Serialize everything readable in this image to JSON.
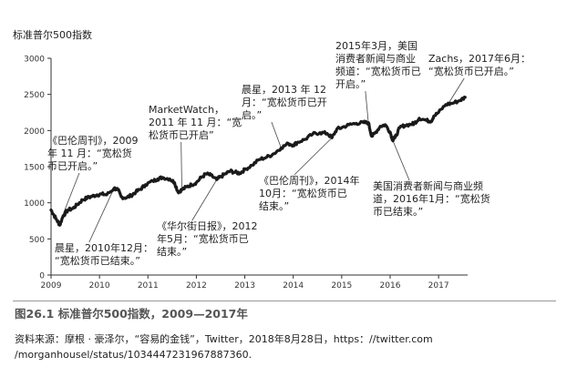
{
  "chart_data": {
    "type": "line",
    "title": "标准普尔500指数",
    "xlabel": "",
    "ylabel": "",
    "ylim": [
      0,
      3000
    ],
    "xlim": [
      2009,
      2017.6
    ],
    "yticks": [
      "0",
      "500",
      "1000",
      "1500",
      "2000",
      "2500",
      "3000"
    ],
    "xticks": [
      "2009",
      "2010",
      "2011",
      "2012",
      "2013",
      "2014",
      "2015",
      "2016",
      "2017"
    ],
    "series": [
      {
        "x": [
          2009.0,
          2009.05,
          2009.12,
          2009.18,
          2009.25,
          2009.35,
          2009.45,
          2009.55,
          2009.65,
          2009.75,
          2009.85,
          2009.95,
          2010.05,
          2010.15,
          2010.3,
          2010.38,
          2010.45,
          2010.55,
          2010.65,
          2010.75,
          2010.85,
          2010.95,
          2011.1,
          2011.2,
          2011.3,
          2011.45,
          2011.55,
          2011.62,
          2011.7,
          2011.8,
          2011.9,
          2012.0,
          2012.1,
          2012.2,
          2012.3,
          2012.42,
          2012.5,
          2012.6,
          2012.7,
          2012.8,
          2012.9,
          2013.0,
          2013.15,
          2013.3,
          2013.45,
          2013.6,
          2013.75,
          2013.9,
          2014.0,
          2014.1,
          2014.25,
          2014.4,
          2014.55,
          2014.7,
          2014.8,
          2014.9,
          2015.0,
          2015.15,
          2015.3,
          2015.45,
          2015.55,
          2015.62,
          2015.68,
          2015.8,
          2015.9,
          2016.0,
          2016.05,
          2016.1,
          2016.2,
          2016.3,
          2016.45,
          2016.5,
          2016.6,
          2016.75,
          2016.85,
          2016.9,
          2017.0,
          2017.15,
          2017.3,
          2017.45,
          2017.55
        ],
        "values": [
          900,
          840,
          760,
          690,
          820,
          900,
          920,
          980,
          1040,
          1070,
          1090,
          1110,
          1120,
          1110,
          1200,
          1180,
          1080,
          1070,
          1100,
          1150,
          1190,
          1250,
          1300,
          1330,
          1350,
          1330,
          1280,
          1150,
          1180,
          1220,
          1250,
          1280,
          1350,
          1400,
          1380,
          1320,
          1360,
          1400,
          1440,
          1420,
          1410,
          1460,
          1520,
          1600,
          1630,
          1680,
          1760,
          1820,
          1800,
          1840,
          1880,
          1950,
          1970,
          1960,
          1900,
          2020,
          2040,
          2080,
          2100,
          2110,
          2110,
          1920,
          1960,
          2060,
          2080,
          1980,
          1870,
          1900,
          2040,
          2070,
          2090,
          2100,
          2170,
          2140,
          2130,
          2200,
          2250,
          2360,
          2380,
          2420,
          2460
        ]
      }
    ],
    "annotations": [
      "《巴伦周刊》，2009\n年 11 月：“宽松货\n币已开启。”",
      "MarketWatch，\n2011 年 11 月：“宽\n松货币已开启”",
      "晨星，2013 年 12\n月：“宽松货币已开\n启。”",
      "2015年3月，美国\n消费者新闻与商业\n频道：“宽松货币已\n开启。”",
      "Zachs，2017年6月：\n“宽松货币已开启。”",
      "晨星，2010年12月：\n“宽松货币已结束。”",
      "《华尔街日报》，2012\n年5月：“宽松货币已\n结束。”",
      "《巴伦周刊》，2014年\n10月：“宽松货币已\n结束。”",
      "美国消费者新闻与商业频\n道，2016年1月：“宽松货\n币已结束。”"
    ],
    "grid": false,
    "line_color": "#1a1a1a"
  },
  "figure": {
    "caption": "图26.1   标准普尔500指数，2009—2017年",
    "source": "资料来源：摩根 · 豪泽尔，“容易的金钱”，Twitter，2018年8月28日，https：//twitter.com /morganhousel/status/1034447231967887360."
  }
}
